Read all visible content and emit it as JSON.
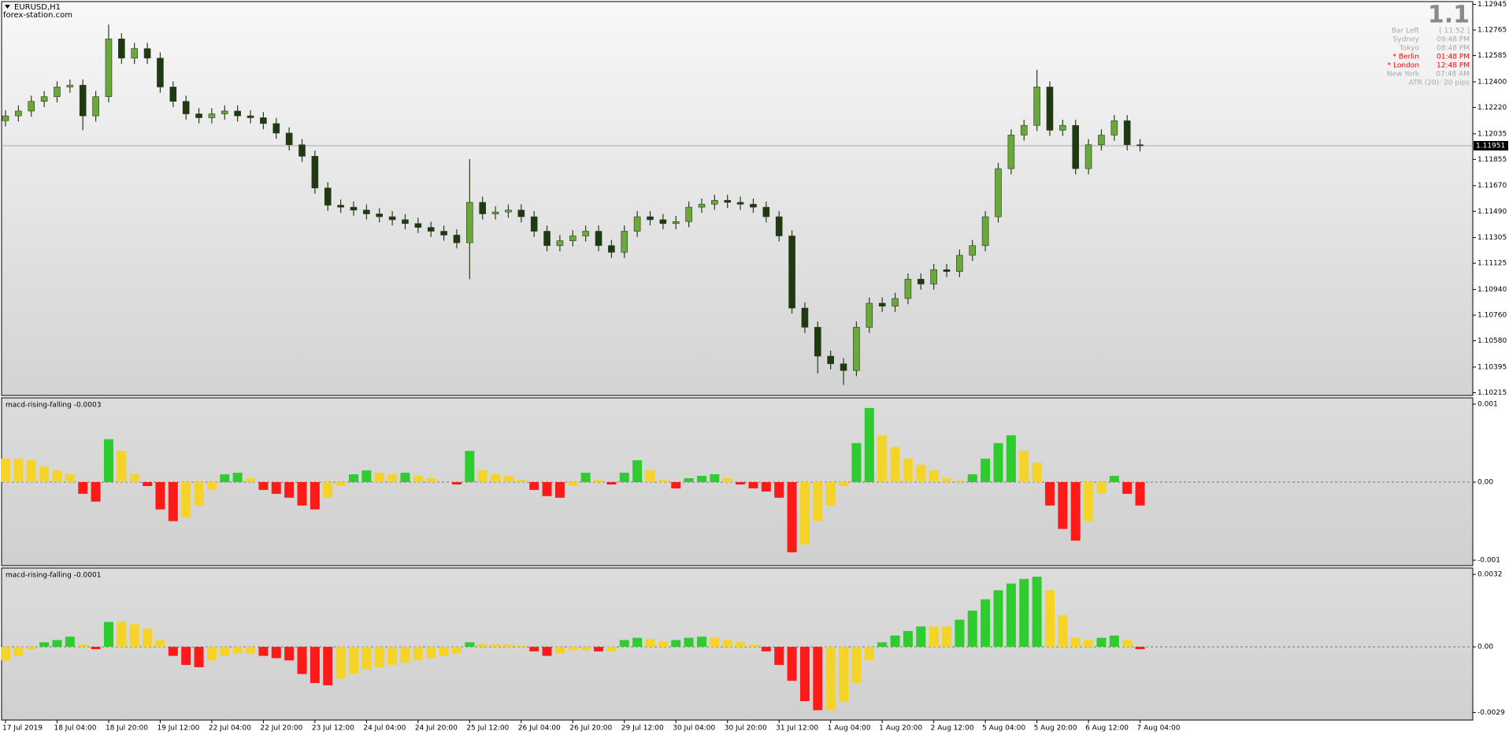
{
  "chart_data": [
    {
      "type": "candlestick",
      "title": "EURUSD,H1",
      "subtitle": "forex-station.com",
      "categories": [
        "17 Jul 2019",
        null,
        null,
        null,
        "18 Jul 04:00",
        null,
        null,
        null,
        "18 Jul 20:00",
        null,
        null,
        null,
        "19 Jul 12:00",
        null,
        null,
        null,
        "22 Jul 04:00",
        null,
        null,
        null,
        "22 Jul 20:00",
        null,
        null,
        null,
        "23 Jul 12:00",
        null,
        null,
        null,
        "24 Jul 04:00",
        null,
        null,
        null,
        "24 Jul 20:00",
        null,
        null,
        null,
        "25 Jul 12:00",
        null,
        null,
        null,
        "26 Jul 04:00",
        null,
        null,
        null,
        "26 Jul 20:00",
        null,
        null,
        null,
        "29 Jul 12:00",
        null,
        null,
        null,
        "30 Jul 04:00",
        null,
        null,
        null,
        "30 Jul 20:00",
        null,
        null,
        null,
        "31 Jul 12:00",
        null,
        null,
        null,
        "1 Aug 04:00",
        null,
        null,
        null,
        "1 Aug 20:00",
        null,
        null,
        null,
        "2 Aug 12:00",
        null,
        null,
        null,
        "5 Aug 04:00",
        null,
        null,
        null,
        "5 Aug 20:00",
        null,
        null,
        null,
        "6 Aug 12:00",
        null,
        null,
        null,
        "7 Aug 04:00"
      ],
      "open": [
        1.12127,
        1.12161,
        1.12195,
        1.12263,
        1.12296,
        1.12364,
        1.12377,
        1.12161,
        1.12296,
        1.12702,
        1.12567,
        1.12634,
        1.12567,
        1.12364,
        1.12263,
        1.12175,
        1.12148,
        1.12175,
        1.12195,
        1.12161,
        1.12148,
        1.12107,
        1.1204,
        1.11958,
        1.11877,
        1.11654,
        1.11533,
        1.11519,
        1.11499,
        1.11472,
        1.11452,
        1.11431,
        1.11404,
        1.11377,
        1.1135,
        1.11323,
        1.11269,
        1.11553,
        1.11472,
        1.11485,
        1.11499,
        1.11452,
        1.1135,
        1.11249,
        1.11283,
        1.11317,
        1.1135,
        1.11249,
        1.11202,
        1.1135,
        1.11452,
        1.11431,
        1.11404,
        1.11418,
        1.11519,
        1.1154,
        1.11567,
        1.11553,
        1.1154,
        1.11519,
        1.11452,
        1.11317,
        1.1081,
        1.10675,
        1.10472,
        1.10418,
        1.10371,
        1.10675,
        1.10844,
        1.10823,
        1.10877,
        1.11013,
        1.10979,
        1.1108,
        1.11067,
        1.11181,
        1.11249,
        1.11452,
        1.1179,
        1.12026,
        1.12094,
        1.12364,
        1.1206,
        1.12094,
        1.1179,
        1.11958,
        1.12026,
        1.12127,
        1.11958
      ],
      "high": [
        1.12201,
        1.12235,
        1.12303,
        1.12336,
        1.12404,
        1.12417,
        1.12417,
        1.12336,
        1.12803,
        1.12742,
        1.12674,
        1.12674,
        1.12607,
        1.12404,
        1.12303,
        1.12215,
        1.12215,
        1.12235,
        1.12235,
        1.12201,
        1.12188,
        1.12147,
        1.1208,
        1.11998,
        1.11917,
        1.11694,
        1.11573,
        1.11559,
        1.11539,
        1.11512,
        1.11492,
        1.11471,
        1.11444,
        1.11417,
        1.1139,
        1.11363,
        1.11857,
        1.11593,
        1.11525,
        1.11539,
        1.11539,
        1.11492,
        1.1139,
        1.11323,
        1.11357,
        1.1139,
        1.1139,
        1.11289,
        1.1139,
        1.11492,
        1.11492,
        1.11471,
        1.11458,
        1.11559,
        1.1158,
        1.11607,
        1.11607,
        1.11593,
        1.1158,
        1.11559,
        1.11492,
        1.11357,
        1.1085,
        1.10715,
        1.10512,
        1.10458,
        1.10715,
        1.10884,
        1.10884,
        1.10917,
        1.11053,
        1.11053,
        1.1112,
        1.1112,
        1.11221,
        1.11289,
        1.11492,
        1.1183,
        1.12066,
        1.12134,
        1.12485,
        1.12404,
        1.12134,
        1.12134,
        1.11998,
        1.12066,
        1.12167,
        1.12167,
        1.11998
      ],
      "low": [
        1.12087,
        1.12121,
        1.12155,
        1.12223,
        1.12256,
        1.12324,
        1.1206,
        1.12121,
        1.12256,
        1.12527,
        1.12527,
        1.12527,
        1.12324,
        1.12223,
        1.12135,
        1.12108,
        1.12108,
        1.12135,
        1.12121,
        1.12108,
        1.12067,
        1.12,
        1.11918,
        1.11837,
        1.11614,
        1.11493,
        1.11479,
        1.11459,
        1.11432,
        1.11412,
        1.11391,
        1.11364,
        1.11337,
        1.1131,
        1.11283,
        1.11229,
        1.11013,
        1.11432,
        1.11432,
        1.11445,
        1.11412,
        1.1131,
        1.11209,
        1.11209,
        1.11243,
        1.11277,
        1.11209,
        1.11162,
        1.11162,
        1.1131,
        1.11391,
        1.11364,
        1.11364,
        1.11378,
        1.11479,
        1.115,
        1.11513,
        1.115,
        1.11479,
        1.11412,
        1.11277,
        1.1077,
        1.10635,
        1.1035,
        1.10378,
        1.10269,
        1.10331,
        1.10635,
        1.10783,
        1.10783,
        1.10837,
        1.10939,
        1.10939,
        1.11027,
        1.11027,
        1.11141,
        1.11209,
        1.11412,
        1.1175,
        1.11986,
        1.12054,
        1.1202,
        1.1202,
        1.1175,
        1.1175,
        1.11918,
        1.11986,
        1.11918,
        1.11911
      ],
      "close": [
        1.12161,
        1.12195,
        1.12263,
        1.12296,
        1.12364,
        1.12377,
        1.12161,
        1.12296,
        1.12702,
        1.12567,
        1.12634,
        1.12567,
        1.12364,
        1.12263,
        1.12175,
        1.12148,
        1.12175,
        1.12195,
        1.12161,
        1.12148,
        1.12107,
        1.1204,
        1.11958,
        1.11877,
        1.11654,
        1.11533,
        1.11519,
        1.11499,
        1.11472,
        1.11452,
        1.11431,
        1.11404,
        1.11377,
        1.1135,
        1.11323,
        1.11269,
        1.11553,
        1.11472,
        1.11485,
        1.11499,
        1.11452,
        1.1135,
        1.11249,
        1.11283,
        1.11317,
        1.1135,
        1.11249,
        1.11202,
        1.1135,
        1.11452,
        1.11431,
        1.11404,
        1.11418,
        1.11519,
        1.1154,
        1.11567,
        1.11553,
        1.1154,
        1.11519,
        1.11452,
        1.11317,
        1.1081,
        1.10675,
        1.10472,
        1.10418,
        1.10371,
        1.10675,
        1.10844,
        1.10823,
        1.10877,
        1.11013,
        1.10979,
        1.1108,
        1.11067,
        1.11181,
        1.11249,
        1.11452,
        1.1179,
        1.12026,
        1.12094,
        1.12364,
        1.1206,
        1.12094,
        1.1179,
        1.11958,
        1.12026,
        1.12127,
        1.11958,
        1.11951
      ],
      "ylim": [
        1.10201,
        1.12959
      ],
      "yticks": [
        1.12945,
        1.12765,
        1.12585,
        {
          "value": 1.124,
          "label": "1.12400"
        },
        {
          "value": 1.1222,
          "label": "1.12220"
        },
        1.12035,
        1.11855,
        {
          "value": 1.1167,
          "label": "1.11670"
        },
        {
          "value": 1.1149,
          "label": "1.11490"
        },
        1.11305,
        1.11125,
        {
          "value": 1.1094,
          "label": "1.10940"
        },
        {
          "value": 1.1076,
          "label": "1.10760"
        },
        {
          "value": 1.1058,
          "label": "1.10580"
        },
        1.10395,
        1.10215
      ],
      "current_price": 1.11951,
      "colors": {
        "up": "#6aa83a",
        "down": "#1f3a10",
        "wick": "#2a3a20"
      }
    },
    {
      "type": "bar",
      "title": "macd-rising-falling -0.0003",
      "values": [
        0.0003,
        0.0003,
        0.00028,
        0.0002,
        0.00015,
        0.0001,
        -0.00015,
        -0.00025,
        0.00055,
        0.0004,
        0.0001,
        -5e-05,
        -0.00035,
        -0.0005,
        -0.00045,
        -0.0003,
        -0.0001,
        0.0001,
        0.00012,
        5e-05,
        -0.0001,
        -0.00015,
        -0.0002,
        -0.0003,
        -0.00035,
        -0.0002,
        -5e-05,
        0.0001,
        0.00015,
        0.00012,
        0.0001,
        0.00012,
        8e-05,
        5e-05,
        0,
        -3e-05,
        0.0004,
        0.00015,
        0.0001,
        8e-05,
        3e-05,
        -0.0001,
        -0.00018,
        -0.0002,
        -5e-05,
        0.00012,
        3e-05,
        -3e-05,
        0.00012,
        0.00028,
        0.00015,
        3e-05,
        -8e-05,
        5e-05,
        8e-05,
        0.0001,
        5e-05,
        -3e-05,
        -8e-05,
        -0.00012,
        -0.0002,
        -0.0009,
        -0.0008,
        -0.0005,
        -0.0003,
        -5e-05,
        0.0005,
        0.00095,
        0.0006,
        0.00045,
        0.0003,
        0.00022,
        0.00015,
        5e-05,
        2e-05,
        0.0001,
        0.0003,
        0.0005,
        0.0006,
        0.0004,
        0.00025,
        -0.0003,
        -0.0006,
        -0.00075,
        -0.0005,
        -0.00015,
        8e-05,
        -0.00015,
        -0.0003
      ],
      "ylim": [
        -0.00106,
        0.00107
      ],
      "yticks": [
        0.001,
        {
          "value": 0,
          "label": "0.00"
        },
        -0.001
      ],
      "colors": {
        "rising": "#2ecc2e",
        "falling": "#f5d327",
        "negative_falling": "#ff1a1a"
      }
    },
    {
      "type": "bar",
      "title": "macd-rising-falling -0.0001",
      "values": [
        -0.0006,
        -0.0004,
        -0.0001,
        0.0002,
        0.0003,
        0.00045,
        0.0001,
        -0.0001,
        0.0011,
        0.0011,
        0.001,
        0.0008,
        0.0003,
        -0.0004,
        -0.0008,
        -0.0009,
        -0.0006,
        -0.0004,
        -0.0003,
        -0.0003,
        -0.0004,
        -0.0005,
        -0.0006,
        -0.0012,
        -0.0016,
        -0.0017,
        -0.0014,
        -0.0012,
        -0.001,
        -0.0009,
        -0.0008,
        -0.0007,
        -0.0006,
        -0.0005,
        -0.0004,
        -0.0003,
        0.0002,
        0.00012,
        0.0001,
        0.0001,
        5e-05,
        -0.0002,
        -0.0004,
        -0.0003,
        -0.00015,
        -0.00015,
        -0.0002,
        -0.0002,
        0.0003,
        0.0004,
        0.00035,
        0.00025,
        0.0003,
        0.0004,
        0.00045,
        0.0004,
        0.0003,
        0.0002,
        0.0001,
        -0.0002,
        -0.0008,
        -0.0015,
        -0.0024,
        -0.0028,
        -0.0028,
        -0.0024,
        -0.0016,
        -0.0006,
        0.0002,
        0.0005,
        0.0007,
        0.0009,
        0.0009,
        0.0009,
        0.0012,
        0.0016,
        0.0021,
        0.0025,
        0.0028,
        0.003,
        0.0031,
        0.0025,
        0.0014,
        0.0004,
        0.0003,
        0.0004,
        0.0005,
        0.0003,
        -0.0001
      ],
      "ylim": [
        -0.0032,
        0.00345
      ],
      "yticks": [
        0.0032,
        {
          "value": 0,
          "label": "0.00"
        },
        -0.0029
      ],
      "colors": {
        "rising": "#2ecc2e",
        "falling": "#f5d327",
        "negative_falling": "#ff1a1a"
      }
    }
  ],
  "info_panel": {
    "big_value": "1.1",
    "rows": [
      {
        "label": "Bar Left",
        "time": "[ 11:52 ]",
        "color": "#a8a8a8"
      },
      {
        "label": "Sydney",
        "time": "09:48 PM",
        "color": "#a8a8a8"
      },
      {
        "label": "Tokyo",
        "time": "08:48 PM",
        "color": "#a8a8a8"
      },
      {
        "label": "* Berlin",
        "time": "01:48 PM",
        "color": "#ff0000"
      },
      {
        "label": "* London",
        "time": "12:48 PM",
        "color": "#ff0000"
      },
      {
        "label": "New York",
        "time": "07:48 AM",
        "color": "#a8a8a8"
      }
    ],
    "footer": "ATR (20): 20 pips"
  }
}
